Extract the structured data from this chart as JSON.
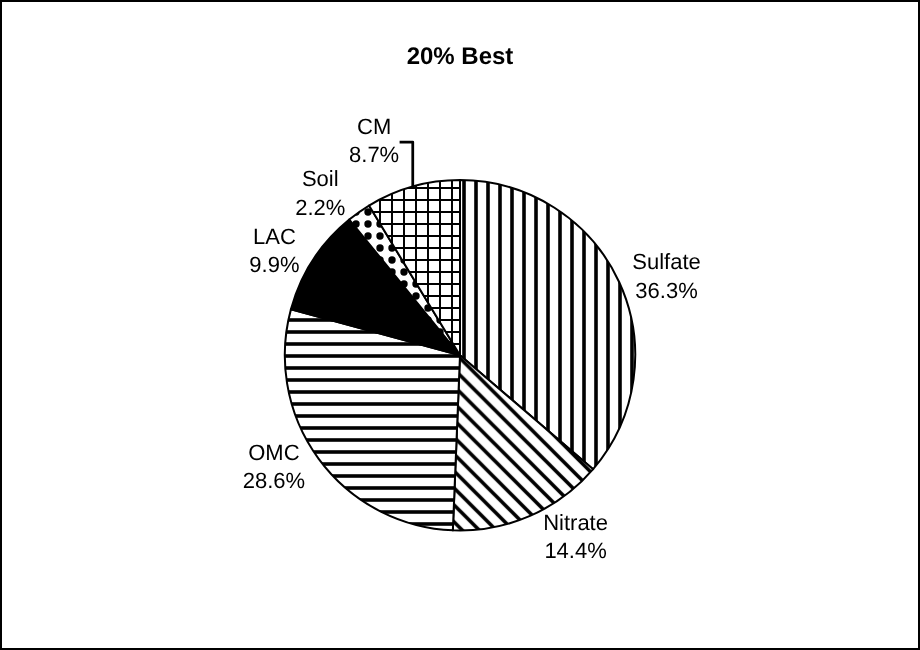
{
  "chart_data": {
    "type": "pie",
    "title": "20% Best",
    "categories": [
      "Sulfate",
      "Nitrate",
      "OMC",
      "LAC",
      "Soil",
      "CM"
    ],
    "values": [
      36.3,
      14.4,
      28.6,
      9.9,
      2.2,
      8.7
    ],
    "value_labels": [
      "36.3%",
      "14.4%",
      "28.6%",
      "9.9%",
      "2.2%",
      "8.7%"
    ],
    "colors": [
      "#000000",
      "#000000",
      "#000000",
      "#000000",
      "#000000",
      "#000000"
    ],
    "legend": false
  }
}
